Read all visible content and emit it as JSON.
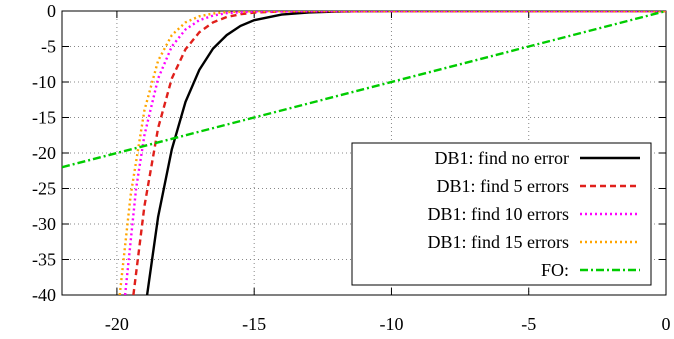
{
  "chart_data": {
    "type": "line",
    "title": "",
    "xlabel": "",
    "ylabel": "",
    "xlim": [
      -22,
      0
    ],
    "ylim": [
      -40,
      0
    ],
    "xticks": [
      -20,
      -15,
      -10,
      -5,
      0
    ],
    "yticks": [
      0,
      -5,
      -10,
      -15,
      -20,
      -25,
      -30,
      -35,
      -40
    ],
    "xtick_labels": [
      "-20",
      "-15",
      "-10",
      "-5",
      "0"
    ],
    "ytick_labels": [
      "0",
      "-5",
      "-10",
      "-15",
      "-20",
      "-25",
      "-30",
      "-35",
      "-40"
    ],
    "grid": true,
    "legend_position": "bottom-right",
    "series": [
      {
        "name": "DB1: find no error",
        "color": "#000000",
        "style": "solid",
        "x": [
          -18.9,
          -18.5,
          -18.0,
          -17.5,
          -17.0,
          -16.5,
          -16.0,
          -15.5,
          -15.0,
          -14.0,
          -13.0,
          -12.0,
          -11.0,
          -10.0,
          -5.0,
          0.0
        ],
        "y": [
          -40.0,
          -29.0,
          -19.5,
          -12.8,
          -8.3,
          -5.3,
          -3.4,
          -2.1,
          -1.3,
          -0.5,
          -0.2,
          -0.08,
          -0.03,
          -0.01,
          0.0,
          0.0
        ]
      },
      {
        "name": "DB1: find 5 errors",
        "color": "#e0201b",
        "style": "dashed",
        "x": [
          -19.4,
          -19.0,
          -18.5,
          -18.0,
          -17.5,
          -17.0,
          -16.5,
          -16.0,
          -15.5,
          -15.0,
          -14.0,
          -10.0,
          -5.0,
          0.0
        ],
        "y": [
          -40.0,
          -27.5,
          -16.5,
          -9.5,
          -5.4,
          -3.0,
          -1.6,
          -0.85,
          -0.45,
          -0.22,
          -0.06,
          0.0,
          0.0,
          0.0
        ]
      },
      {
        "name": "DB1: find 10 errors",
        "color": "#ff00ff",
        "style": "dotted",
        "x": [
          -19.7,
          -19.3,
          -19.0,
          -18.5,
          -18.0,
          -17.5,
          -17.0,
          -16.5,
          -16.0,
          -15.0,
          -10.0,
          -5.0,
          0.0
        ],
        "y": [
          -40.0,
          -25.0,
          -17.5,
          -9.5,
          -5.0,
          -2.6,
          -1.3,
          -0.65,
          -0.3,
          -0.07,
          0.0,
          0.0,
          0.0
        ]
      },
      {
        "name": "DB1: find 15 errors",
        "color": "#ffa500",
        "style": "dotted",
        "x": [
          -19.9,
          -19.5,
          -19.0,
          -18.5,
          -18.0,
          -17.5,
          -17.0,
          -16.5,
          -16.0,
          -15.0,
          -10.0,
          -5.0,
          0.0
        ],
        "y": [
          -40.0,
          -26.0,
          -14.0,
          -7.0,
          -3.4,
          -1.6,
          -0.75,
          -0.35,
          -0.16,
          -0.03,
          0.0,
          0.0,
          0.0
        ]
      },
      {
        "name": "FO:",
        "color": "#00cc00",
        "style": "dash-dot",
        "x": [
          -22,
          0
        ],
        "y": [
          -22,
          0
        ]
      }
    ]
  }
}
